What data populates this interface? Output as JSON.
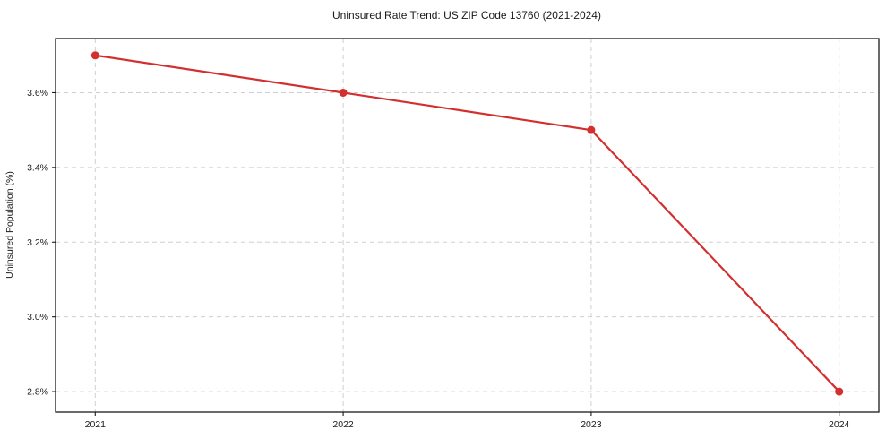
{
  "chart_data": {
    "type": "line",
    "title": "Uninsured Rate Trend: US ZIP Code 13760 (2021-2024)",
    "xlabel": "",
    "ylabel": "Uninsured Population (%)",
    "x": [
      2021,
      2022,
      2023,
      2024
    ],
    "x_tick_labels": [
      "2021",
      "2022",
      "2023",
      "2024"
    ],
    "series": [
      {
        "name": "Uninsured rate",
        "values": [
          3.7,
          3.6,
          3.5,
          2.8
        ]
      }
    ],
    "y_ticks": [
      2.8,
      3.0,
      3.2,
      3.4,
      3.6
    ],
    "y_tick_labels": [
      "2.8%",
      "3.0%",
      "3.2%",
      "3.4%",
      "3.6%"
    ],
    "xlim": [
      2020.84,
      2024.16
    ],
    "ylim": [
      2.745,
      3.745
    ],
    "grid": true,
    "grid_style": "dashed",
    "legend_position": "none",
    "line_color": "#d32f2f",
    "marker": "circle",
    "marker_color": "#d32f2f",
    "grid_color": "#cfcfcf",
    "axis_color": "#1a1a1a",
    "background_color": "#ffffff"
  }
}
